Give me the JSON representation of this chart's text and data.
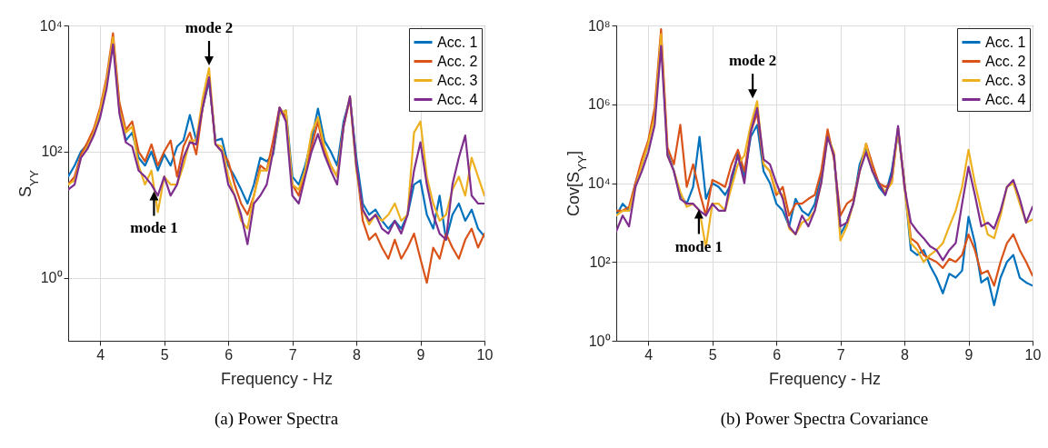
{
  "chart_data": [
    {
      "type": "line",
      "title": "(a) Power Spectra",
      "xlabel": "Frequency - Hz",
      "ylabel": "S$_{YY}$",
      "log": "y",
      "grid": true,
      "legend": "top right",
      "x": [
        3.5,
        3.6,
        3.7,
        3.8,
        3.9,
        4.0,
        4.1,
        4.2,
        4.3,
        4.4,
        4.5,
        4.6,
        4.7,
        4.8,
        4.9,
        5.0,
        5.1,
        5.2,
        5.3,
        5.4,
        5.5,
        5.6,
        5.7,
        5.8,
        5.9,
        6.0,
        6.1,
        6.2,
        6.3,
        6.4,
        6.5,
        6.6,
        6.7,
        6.8,
        6.9,
        7.0,
        7.1,
        7.2,
        7.3,
        7.4,
        7.5,
        7.6,
        7.7,
        7.8,
        7.9,
        8.0,
        8.1,
        8.2,
        8.3,
        8.4,
        8.5,
        8.6,
        8.7,
        8.8,
        8.9,
        9.0,
        9.1,
        9.2,
        9.3,
        9.4,
        9.5,
        9.6,
        9.7,
        9.8,
        9.9,
        10.0
      ],
      "xlim": [
        3.5,
        10
      ],
      "xticks": [
        4,
        5,
        6,
        7,
        8,
        9,
        10
      ],
      "ylim": [
        0.1,
        10000
      ],
      "yticks": [
        {
          "value": 1,
          "label": "10⁰"
        },
        {
          "value": 100,
          "label": "10²"
        },
        {
          "value": 10000,
          "label": "10⁴"
        }
      ],
      "series": [
        {
          "name": "Acc. 1",
          "color": "#0072bd",
          "values": [
            40,
            60,
            100,
            130,
            200,
            400,
            1200,
            null,
            500,
            150,
            200,
            80,
            60,
            100,
            50,
            90,
            60,
            120,
            150,
            380,
            150,
            500,
            1300,
            150,
            160,
            60,
            40,
            25,
            15,
            30,
            80,
            70,
            90,
            400,
            450,
            40,
            30,
            60,
            150,
            480,
            150,
            100,
            60,
            300,
            700,
            80,
            15,
            10,
            12,
            8,
            6,
            8,
            6,
            10,
            30,
            35,
            10,
            6,
            20,
            4,
            10,
            15,
            8,
            12,
            6,
            4.5
          ]
        },
        {
          "name": "Acc. 2",
          "color": "#d95319",
          "values": [
            30,
            40,
            90,
            140,
            230,
            500,
            1500,
            7500,
            600,
            220,
            300,
            100,
            70,
            130,
            60,
            100,
            150,
            40,
            120,
            200,
            90,
            500,
            1500,
            130,
            100,
            70,
            30,
            15,
            10,
            20,
            60,
            50,
            150,
            500,
            350,
            30,
            20,
            50,
            120,
            300,
            100,
            60,
            40,
            250,
            700,
            60,
            8,
            4,
            5,
            3,
            2,
            4,
            2,
            3,
            5,
            2,
            0.83,
            3,
            2,
            5,
            3,
            2,
            4,
            6,
            3,
            5
          ]
        },
        {
          "name": "Acc. 3",
          "color": "#edb120",
          "values": [
            30,
            35,
            80,
            120,
            200,
            450,
            1300,
            6500,
            450,
            200,
            250,
            60,
            30,
            50,
            11,
            40,
            30,
            30,
            60,
            150,
            150,
            700,
            2100,
            130,
            120,
            40,
            20,
            8,
            6,
            20,
            50,
            50,
            100,
            400,
            450,
            30,
            25,
            50,
            200,
            350,
            120,
            60,
            40,
            250,
            750,
            50,
            12,
            7,
            10,
            8,
            10,
            15,
            8,
            10,
            200,
            300,
            40,
            15,
            8,
            10,
            25,
            40,
            20,
            80,
            40,
            20
          ]
        },
        {
          "name": "Acc. 4",
          "color": "#7e2f8e",
          "values": [
            25,
            30,
            80,
            110,
            180,
            350,
            1000,
            5000,
            400,
            140,
            120,
            50,
            40,
            30,
            20,
            40,
            20,
            30,
            80,
            140,
            130,
            500,
            1500,
            130,
            100,
            30,
            20,
            10,
            3.4,
            15,
            20,
            30,
            100,
            500,
            300,
            20,
            15,
            40,
            100,
            190,
            90,
            50,
            30,
            250,
            750,
            60,
            12,
            8,
            10,
            6,
            5,
            8,
            5,
            10,
            50,
            140,
            30,
            10,
            5,
            4,
            30,
            80,
            180,
            20,
            15,
            15
          ]
        }
      ],
      "annotations": [
        {
          "text": "mode 2",
          "x": 5.7,
          "y": 2100
        },
        {
          "text": "mode 1",
          "x": 4.84,
          "y": 26
        }
      ]
    },
    {
      "type": "line",
      "title": "(b) Power Spectra Covariance",
      "xlabel": "Frequency - Hz",
      "ylabel": "Cov[S$_{YY}$]",
      "log": "y",
      "grid": true,
      "legend": "top right",
      "x": [
        3.5,
        3.6,
        3.7,
        3.8,
        3.9,
        4.0,
        4.1,
        4.2,
        4.3,
        4.4,
        4.5,
        4.6,
        4.7,
        4.8,
        4.9,
        5.0,
        5.1,
        5.2,
        5.3,
        5.4,
        5.5,
        5.6,
        5.7,
        5.8,
        5.9,
        6.0,
        6.1,
        6.2,
        6.3,
        6.4,
        6.5,
        6.6,
        6.7,
        6.8,
        6.9,
        7.0,
        7.1,
        7.2,
        7.3,
        7.4,
        7.5,
        7.6,
        7.7,
        7.8,
        7.9,
        8.0,
        8.1,
        8.2,
        8.3,
        8.4,
        8.5,
        8.6,
        8.7,
        8.8,
        8.9,
        9.0,
        9.1,
        9.2,
        9.3,
        9.4,
        9.5,
        9.6,
        9.7,
        9.8,
        9.9,
        10.0
      ],
      "xlim": [
        3.5,
        10
      ],
      "xticks": [
        4,
        5,
        6,
        7,
        8,
        9,
        10
      ],
      "ylim": [
        1,
        100000000
      ],
      "yticks": [
        {
          "value": 1,
          "label": "10⁰"
        },
        {
          "value": 100,
          "label": "10²"
        },
        {
          "value": 10000,
          "label": "10⁴"
        },
        {
          "value": 1000000,
          "label": "10⁶"
        },
        {
          "value": 100000000,
          "label": "10⁸"
        }
      ],
      "series": [
        {
          "name": "Acc. 1",
          "color": "#0072bd",
          "values": [
            1500,
            3000,
            2000,
            10000,
            30000,
            100000,
            600000,
            null,
            60000,
            20000,
            5000,
            3000,
            8000,
            150000,
            4000,
            10000,
            8000,
            5000,
            10000,
            60000,
            15000,
            150000,
            300000,
            20000,
            10000,
            3000,
            2000,
            800,
            4000,
            2000,
            1500,
            3000,
            15000,
            180000,
            50000,
            500,
            1000,
            3000,
            30000,
            80000,
            20000,
            8000,
            5000,
            20000,
            200000,
            10000,
            200,
            150,
            200,
            80,
            40,
            16,
            50,
            40,
            60,
            1400,
            300,
            30,
            40,
            8,
            40,
            100,
            150,
            40,
            30,
            25
          ]
        },
        {
          "name": "Acc. 2",
          "color": "#d95319",
          "values": [
            2000,
            2000,
            2500,
            10000,
            40000,
            120000,
            800000,
            80000000,
            80000,
            30000,
            300000,
            8000,
            30000,
            6000,
            1500,
            12000,
            10000,
            8000,
            30000,
            70000,
            20000,
            200000,
            600000,
            30000,
            20000,
            5000,
            8000,
            1500,
            3000,
            3000,
            4000,
            5000,
            20000,
            230000,
            40000,
            1500,
            3000,
            4000,
            20000,
            100000,
            30000,
            10000,
            8000,
            10000,
            250000,
            10000,
            400,
            300,
            150,
            120,
            100,
            70,
            120,
            100,
            150,
            500,
            200,
            50,
            60,
            25,
            100,
            300,
            500,
            200,
            100,
            45
          ]
        },
        {
          "name": "Acc. 3",
          "color": "#edb120",
          "values": [
            1500,
            2000,
            2000,
            8000,
            30000,
            100000,
            500000,
            60000000,
            50000,
            20000,
            6000,
            2500,
            3000,
            2000,
            230,
            3000,
            3000,
            2000,
            8000,
            30000,
            50000,
            300000,
            1200000,
            30000,
            20000,
            6000,
            5000,
            700,
            500,
            1000,
            1200,
            2000,
            10000,
            150000,
            60000,
            350,
            800,
            3000,
            20000,
            100000,
            20000,
            10000,
            6000,
            10000,
            240000,
            8000,
            300,
            200,
            100,
            150,
            200,
            300,
            800,
            2000,
            8000,
            70000,
            10000,
            2000,
            500,
            400,
            1500,
            8000,
            10000,
            3000,
            1000,
            1200
          ]
        },
        {
          "name": "Acc. 4",
          "color": "#7e2f8e",
          "values": [
            600,
            1500,
            800,
            8000,
            20000,
            60000,
            300000,
            30000000,
            50000,
            20000,
            4000,
            3000,
            3000,
            2000,
            1500,
            3000,
            2000,
            2000,
            15000,
            50000,
            10000,
            200000,
            800000,
            40000,
            30000,
            10000,
            4000,
            800,
            500,
            1500,
            800,
            2000,
            10000,
            150000,
            50000,
            800,
            1000,
            3000,
            20000,
            60000,
            20000,
            10000,
            5000,
            15000,
            280000,
            8000,
            1000,
            600,
            400,
            250,
            200,
            110,
            200,
            300,
            3000,
            26000,
            5000,
            800,
            1000,
            700,
            2000,
            8000,
            12000,
            4000,
            1000,
            2500
          ]
        }
      ],
      "annotations": [
        {
          "text": "mode 2",
          "x": 5.63,
          "y": 1200000
        },
        {
          "text": "mode 1",
          "x": 4.79,
          "y": 2500
        }
      ]
    }
  ]
}
